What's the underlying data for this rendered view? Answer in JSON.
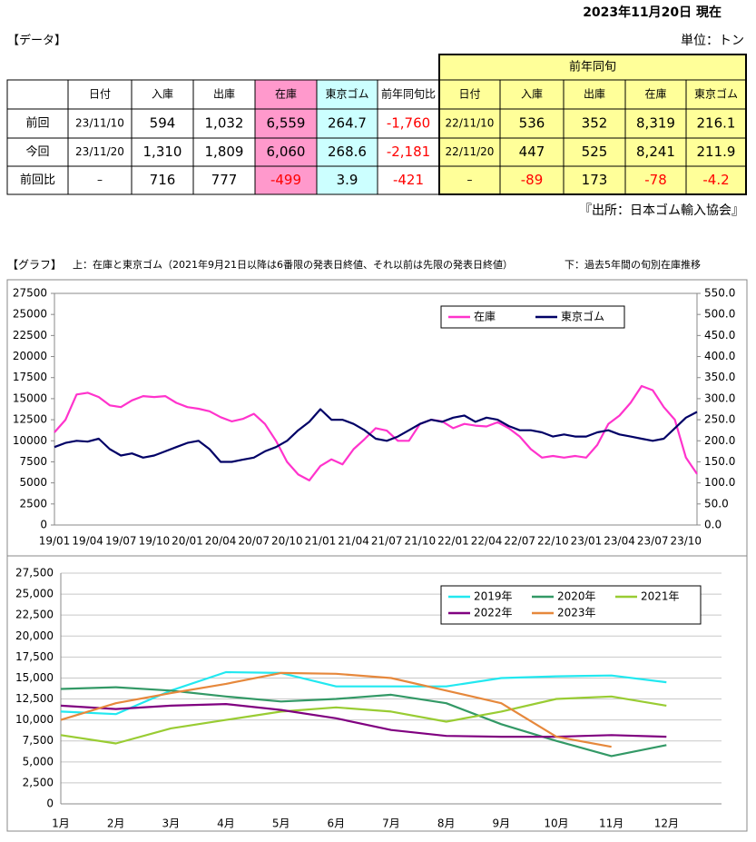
{
  "header": {
    "date": "2023年11月20日 現在",
    "section": "【データ】",
    "unit": "単位：トン"
  },
  "table": {
    "group_header": "前年同旬",
    "columns": [
      "日付",
      "入庫",
      "出庫",
      "在庫",
      "東京ゴム",
      "前年同旬比",
      "日付",
      "入庫",
      "出庫",
      "在庫",
      "東京ゴム"
    ],
    "rows": [
      {
        "label": "前回",
        "cells": [
          "23/11/10",
          "594",
          "1,032",
          "6,559",
          "264.7",
          "-1,760",
          "22/11/10",
          "536",
          "352",
          "8,319",
          "216.1"
        ]
      },
      {
        "label": "今回",
        "cells": [
          "23/11/20",
          "1,310",
          "1,809",
          "6,060",
          "268.6",
          "-2,181",
          "22/11/20",
          "447",
          "525",
          "8,241",
          "211.9"
        ]
      },
      {
        "label": "前回比",
        "cells": [
          "–",
          "716",
          "777",
          "-499",
          "3.9",
          "-421",
          "–",
          "-89",
          "173",
          "-78",
          "-4.2"
        ]
      }
    ]
  },
  "source": "『出所：日本ゴム輸入協会』",
  "graph_heading": {
    "label": "【グラフ】",
    "upper": "上：在庫と東京ゴム（2021年9月21日以降は6番限の発表日終値、それ以前は先限の発表日終値）",
    "lower": "下：過去5年間の旬別在庫推移"
  },
  "chart_data": [
    {
      "type": "line",
      "categories": [
        "19/01",
        null,
        null,
        "19/04",
        null,
        null,
        "19/07",
        null,
        null,
        "19/10",
        null,
        null,
        "20/01",
        null,
        null,
        "20/04",
        null,
        null,
        "20/07",
        null,
        null,
        "20/10",
        null,
        null,
        "21/01",
        null,
        null,
        "21/04",
        null,
        null,
        "21/07",
        null,
        null,
        "21/10",
        null,
        null,
        "22/01",
        null,
        null,
        "22/04",
        null,
        null,
        "22/07",
        null,
        null,
        "22/10",
        null,
        null,
        "23/01",
        null,
        null,
        "23/04",
        null,
        null,
        "23/07",
        null,
        null,
        "23/10",
        null
      ],
      "series": [
        {
          "name": "在庫",
          "color": "#ff33cc",
          "values": [
            11000,
            12500,
            15500,
            15700,
            15200,
            14200,
            14000,
            14800,
            15300,
            15200,
            15300,
            14500,
            14000,
            13800,
            13500,
            12800,
            12300,
            12600,
            13200,
            12000,
            10000,
            7500,
            6000,
            5300,
            7000,
            7800,
            7200,
            9000,
            10200,
            11500,
            11200,
            10000,
            10000,
            12000,
            12500,
            12300,
            11500,
            12000,
            11800,
            11700,
            12200,
            11500,
            10500,
            9000,
            8000,
            8200,
            8000,
            8200,
            8000,
            9500,
            12000,
            13000,
            14500,
            16500,
            16000,
            14000,
            12500,
            8000,
            6060
          ]
        },
        {
          "name": "東京ゴム",
          "color": "#000066",
          "axis": "y2",
          "values": [
            185,
            195,
            200,
            198,
            205,
            180,
            165,
            170,
            160,
            165,
            175,
            185,
            195,
            200,
            180,
            150,
            150,
            155,
            160,
            175,
            185,
            200,
            225,
            245,
            275,
            250,
            250,
            240,
            225,
            205,
            200,
            210,
            225,
            240,
            250,
            245,
            255,
            260,
            245,
            255,
            250,
            235,
            225,
            225,
            220,
            210,
            215,
            210,
            210,
            220,
            225,
            215,
            210,
            205,
            200,
            205,
            230,
            255,
            268.6
          ]
        }
      ],
      "ylim": [
        0,
        27500
      ],
      "yticks": [
        0,
        2500,
        5000,
        7500,
        10000,
        12500,
        15000,
        17500,
        20000,
        22500,
        25000,
        27500
      ],
      "y2lim": [
        0,
        550
      ],
      "y2ticks": [
        {
          "value": 0,
          "label": "0.0"
        },
        {
          "value": 50,
          "label": "50.0"
        },
        {
          "value": 100,
          "label": "100.0"
        },
        {
          "value": 150,
          "label": "150.0"
        },
        {
          "value": 200,
          "label": "200.0"
        },
        {
          "value": 250,
          "label": "250.0"
        },
        {
          "value": 300,
          "label": "300.0"
        },
        {
          "value": 350,
          "label": "350.0"
        },
        {
          "value": 400,
          "label": "400.0"
        },
        {
          "value": 450,
          "label": "450.0"
        },
        {
          "value": 500,
          "label": "500.0"
        },
        {
          "value": 550,
          "label": "550.0"
        }
      ],
      "grid": false,
      "legend": "top-right"
    },
    {
      "type": "line",
      "categories": [
        "1月",
        "2月",
        "3月",
        "4月",
        "5月",
        "6月",
        "7月",
        "8月",
        "9月",
        "10月",
        "11月",
        "12月"
      ],
      "series": [
        {
          "name": "2019年",
          "color": "#22e8f0",
          "values": [
            11000,
            10700,
            13500,
            15700,
            15600,
            14000,
            14000,
            14000,
            15000,
            15200,
            15300,
            14500
          ]
        },
        {
          "name": "2020年",
          "color": "#339966",
          "values": [
            13700,
            13900,
            13500,
            12800,
            12200,
            12500,
            13000,
            12000,
            9500,
            7500,
            5700,
            7000
          ]
        },
        {
          "name": "2021年",
          "color": "#99cc33",
          "values": [
            8200,
            7200,
            9000,
            10000,
            11000,
            11500,
            11000,
            9800,
            11000,
            12500,
            12800,
            11700
          ]
        },
        {
          "name": "2022年",
          "color": "#800080",
          "values": [
            11700,
            11300,
            11700,
            11900,
            11200,
            10200,
            8800,
            8100,
            8000,
            8000,
            8200,
            8000
          ]
        },
        {
          "name": "2023年",
          "color": "#e6883c",
          "values": [
            10000,
            12000,
            13200,
            14300,
            15600,
            15500,
            15000,
            13500,
            12000,
            8000,
            6800,
            null
          ]
        }
      ],
      "ylim": [
        0,
        27500
      ],
      "yticks": [
        0,
        {
          "value": 2500,
          "label": "2,500"
        },
        {
          "value": 5000,
          "label": "5,000"
        },
        {
          "value": 7500,
          "label": "7,500"
        },
        {
          "value": 10000,
          "label": "10,000"
        },
        {
          "value": 12500,
          "label": "12,500"
        },
        {
          "value": 15000,
          "label": "15,000"
        },
        {
          "value": 17500,
          "label": "17,500"
        },
        {
          "value": 20000,
          "label": "20,000"
        },
        {
          "value": 22500,
          "label": "22,500"
        },
        {
          "value": 25000,
          "label": "25,000"
        },
        {
          "value": 27500,
          "label": "27,500"
        }
      ],
      "grid": true,
      "legend": "top-right"
    }
  ]
}
